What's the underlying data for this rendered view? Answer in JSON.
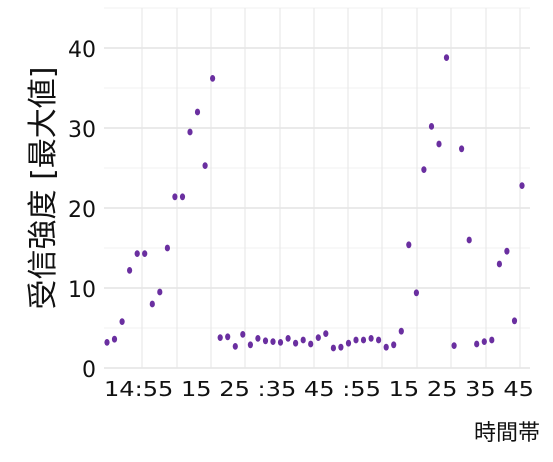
{
  "chart_data": {
    "type": "scatter",
    "ylabel": "受信強度 [最大値]",
    "xlabel": "時間帯",
    "ylim": [
      0,
      45
    ],
    "yticks": [
      0,
      10,
      20,
      30,
      40
    ],
    "grid": true,
    "point_color": "#6a2fa0",
    "x_tick_text": "14:55 15 25 :35 45 :55 15 25 35 45",
    "series": [
      {
        "values": [
          3.2,
          3.6,
          5.8,
          12.2,
          14.3,
          14.3,
          8.0,
          9.5,
          15.0,
          21.4,
          21.4,
          29.5,
          32.0,
          25.3,
          36.2,
          3.8,
          3.9,
          2.7,
          4.2,
          2.9,
          3.7,
          3.4,
          3.3,
          3.2,
          3.7,
          3.1,
          3.5,
          3.0,
          3.8,
          4.3,
          2.5,
          2.6,
          3.1,
          3.5,
          3.5,
          3.7,
          3.5,
          2.6,
          2.9,
          4.6,
          15.4,
          9.4,
          24.8,
          30.2,
          28.0,
          38.8,
          2.8,
          27.4,
          16.0,
          3.0,
          3.3,
          3.5,
          13.0,
          14.6,
          5.9,
          22.8
        ]
      }
    ]
  }
}
